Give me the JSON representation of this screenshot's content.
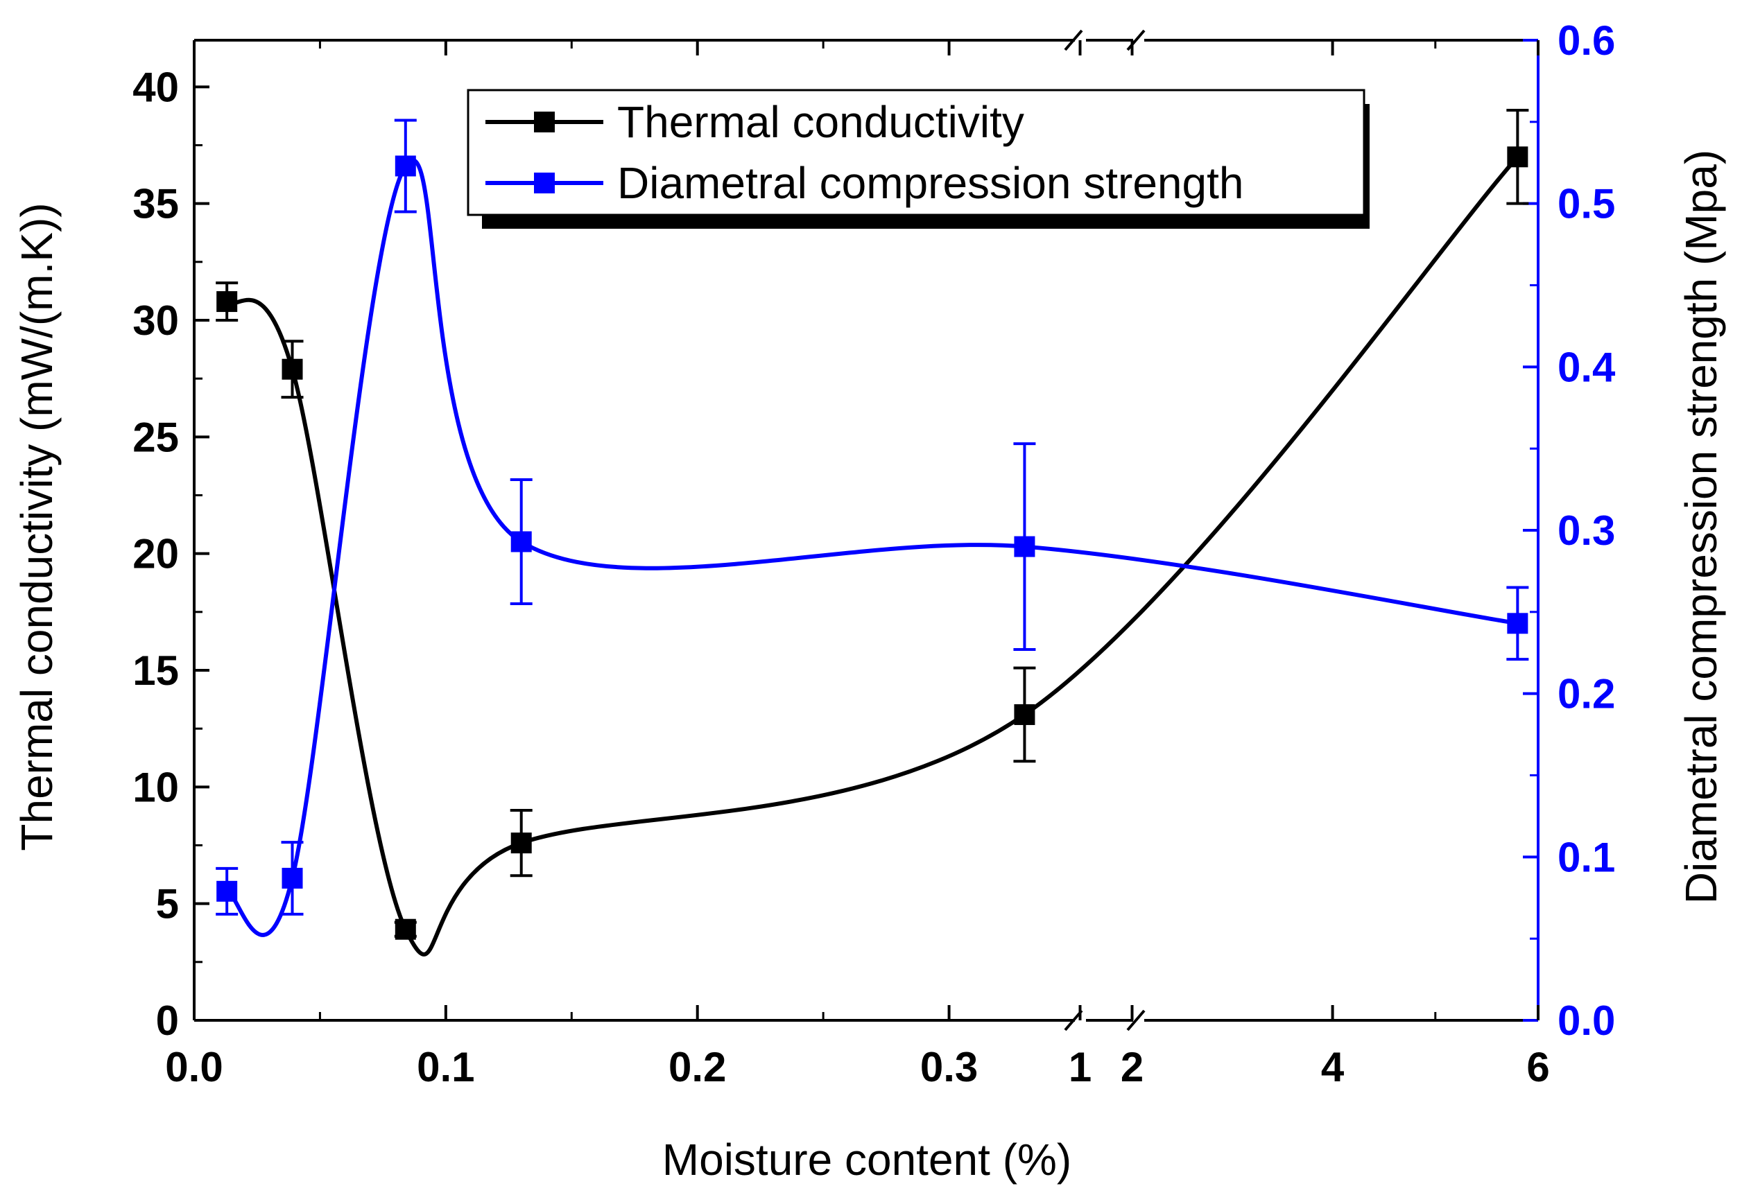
{
  "chart_data": {
    "type": "line",
    "title": "",
    "xlabel": "Moisture content (%)",
    "ylabel_left": "Thermal conductivity (mW/(m.K))",
    "ylabel_right": "Diametral compression strength (Mpa)",
    "x_axis": {
      "broken": true,
      "segment_1": {
        "range": [
          0.0,
          0.35
        ],
        "ticks": [
          0.0,
          0.1,
          0.2,
          0.3
        ],
        "tick_labels": [
          "0.0",
          "0.1",
          "0.2",
          "0.3"
        ]
      },
      "segment_2": {
        "range": [
          0.9,
          2.1
        ],
        "ticks": [
          1,
          2
        ],
        "tick_labels": [
          "1",
          "2"
        ]
      },
      "segment_3": {
        "range": [
          2.1,
          6.0
        ],
        "ticks": [
          4,
          6
        ],
        "tick_labels": [
          "4",
          "6"
        ]
      }
    },
    "ylim_left": [
      0,
      42
    ],
    "yticks_left": [
      0,
      5,
      10,
      15,
      20,
      25,
      30,
      35,
      40
    ],
    "ytick_labels_left": [
      "0",
      "5",
      "10",
      "15",
      "20",
      "25",
      "30",
      "35",
      "40"
    ],
    "ylim_right": [
      0.0,
      0.6
    ],
    "yticks_right": [
      0.0,
      0.1,
      0.2,
      0.3,
      0.4,
      0.5,
      0.6
    ],
    "ytick_labels_right": [
      "0.0",
      "0.1",
      "0.2",
      "0.3",
      "0.4",
      "0.5",
      "0.6"
    ],
    "legend_position": "top-center",
    "series": [
      {
        "name": "Thermal conductivity",
        "axis": "left",
        "color": "#000000",
        "x": [
          0.013,
          0.039,
          0.084,
          0.13,
          0.33,
          5.8
        ],
        "values": [
          30.8,
          27.9,
          3.9,
          7.6,
          13.1,
          37.0
        ],
        "errors": [
          0.8,
          1.2,
          0.3,
          1.4,
          2.0,
          2.0
        ]
      },
      {
        "name": "Diametral compression strength",
        "axis": "right",
        "color": "#0000ff",
        "x": [
          0.013,
          0.039,
          0.084,
          0.13,
          0.33,
          5.8
        ],
        "values": [
          0.079,
          0.087,
          0.523,
          0.293,
          0.29,
          0.243
        ],
        "errors": [
          0.014,
          0.022,
          0.028,
          0.038,
          0.063,
          0.022
        ]
      }
    ]
  }
}
